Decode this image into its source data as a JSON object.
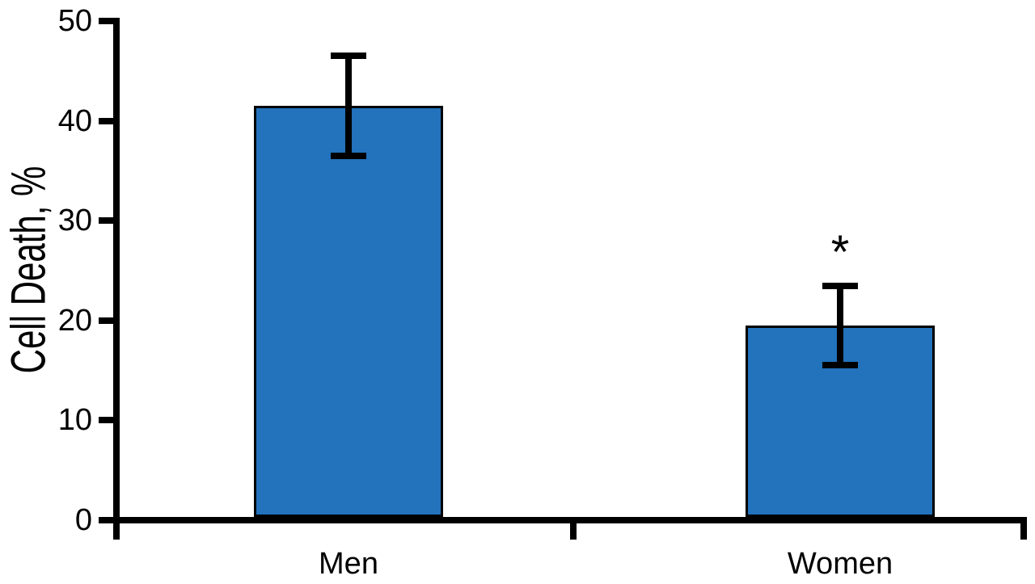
{
  "chart_data": {
    "type": "bar",
    "title": "",
    "ylabel": "Cell Death, %",
    "xlabel": "",
    "categories": [
      "Men",
      "Women"
    ],
    "values": [
      41.5,
      19.5
    ],
    "errors": [
      5.0,
      4.0
    ],
    "significance": [
      {
        "category": "Women",
        "marker": "*"
      }
    ],
    "yticks": [
      0,
      10,
      20,
      30,
      40,
      50
    ],
    "ylim": [
      0,
      50
    ],
    "grid": false,
    "legend": false,
    "colors": {
      "bar_fill": "#2272BC",
      "bar_border": "#000000",
      "axis": "#000000",
      "text": "#000000",
      "background": "#FFFFFF"
    }
  }
}
